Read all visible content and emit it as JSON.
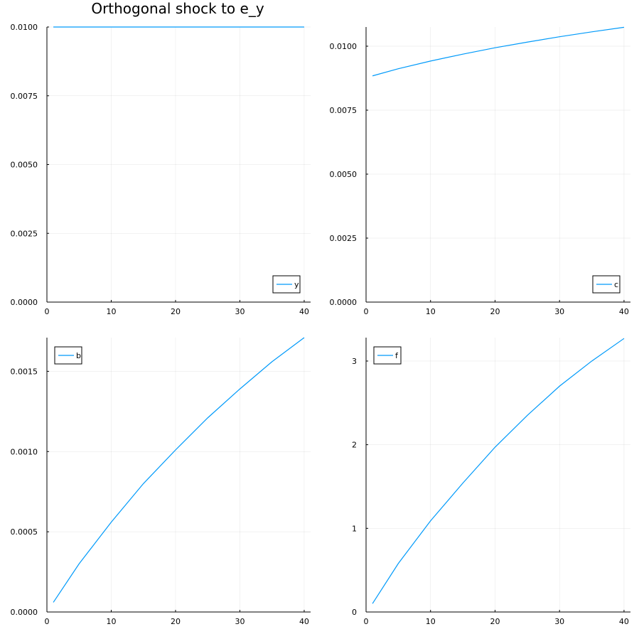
{
  "figure_title": "Orthogonal shock to e_y",
  "colors": {
    "series": "#009AFA"
  },
  "chart_data": [
    {
      "type": "line",
      "title": "Orthogonal shock to e_y",
      "xlabel": "",
      "ylabel": "",
      "xlim": [
        0,
        41
      ],
      "ylim": [
        0,
        0.01
      ],
      "x_ticks": [
        0,
        10,
        20,
        30,
        40
      ],
      "x_tick_labels": [
        "0",
        "10",
        "20",
        "30",
        "40"
      ],
      "y_ticks": [
        0,
        0.0025,
        0.005,
        0.0075,
        0.01
      ],
      "y_tick_labels": [
        "0.0000",
        "0.0025",
        "0.0050",
        "0.0075",
        "0.0100"
      ],
      "grid": true,
      "legend_position": "bottom-right",
      "series": [
        {
          "name": "y",
          "x": [
            1,
            5,
            10,
            15,
            20,
            25,
            30,
            35,
            40
          ],
          "y": [
            0.01,
            0.01,
            0.01,
            0.01,
            0.01,
            0.01,
            0.01,
            0.01,
            0.01
          ]
        }
      ]
    },
    {
      "type": "line",
      "title": "",
      "xlabel": "",
      "ylabel": "",
      "xlim": [
        0,
        41
      ],
      "ylim": [
        0,
        0.01075
      ],
      "x_ticks": [
        0,
        10,
        20,
        30,
        40
      ],
      "x_tick_labels": [
        "0",
        "10",
        "20",
        "30",
        "40"
      ],
      "y_ticks": [
        0,
        0.0025,
        0.005,
        0.0075,
        0.01
      ],
      "y_tick_labels": [
        "0.0000",
        "0.0025",
        "0.0050",
        "0.0075",
        "0.0100"
      ],
      "grid": true,
      "legend_position": "bottom-right",
      "series": [
        {
          "name": "c",
          "x": [
            1,
            5,
            10,
            15,
            20,
            25,
            30,
            35,
            40
          ],
          "y": [
            0.00884,
            0.00912,
            0.00942,
            0.00969,
            0.00994,
            0.01016,
            0.01037,
            0.01056,
            0.01074
          ]
        }
      ]
    },
    {
      "type": "line",
      "title": "",
      "xlabel": "",
      "ylabel": "",
      "xlim": [
        0,
        41
      ],
      "ylim": [
        0,
        0.00171
      ],
      "x_ticks": [
        0,
        10,
        20,
        30,
        40
      ],
      "x_tick_labels": [
        "0",
        "10",
        "20",
        "30",
        "40"
      ],
      "y_ticks": [
        0,
        0.0005,
        0.001,
        0.0015
      ],
      "y_tick_labels": [
        "0.0000",
        "0.0005",
        "0.0010",
        "0.0015"
      ],
      "grid": true,
      "legend_position": "top-left",
      "series": [
        {
          "name": "b",
          "x": [
            1,
            5,
            10,
            15,
            20,
            25,
            30,
            35,
            40
          ],
          "y": [
            6e-05,
            0.0003,
            0.00056,
            0.0008,
            0.00101,
            0.00121,
            0.00139,
            0.00156,
            0.00171
          ]
        }
      ]
    },
    {
      "type": "line",
      "title": "",
      "xlabel": "",
      "ylabel": "",
      "xlim": [
        0,
        41
      ],
      "ylim": [
        0,
        3.28
      ],
      "x_ticks": [
        0,
        10,
        20,
        30,
        40
      ],
      "x_tick_labels": [
        "0",
        "10",
        "20",
        "30",
        "40"
      ],
      "y_ticks": [
        0,
        1,
        2,
        3
      ],
      "y_tick_labels": [
        "0",
        "1",
        "2",
        "3"
      ],
      "grid": true,
      "legend_position": "top-left",
      "series": [
        {
          "name": "f",
          "x": [
            1,
            5,
            10,
            15,
            20,
            25,
            30,
            35,
            40
          ],
          "y": [
            0.1,
            0.58,
            1.09,
            1.54,
            1.97,
            2.35,
            2.7,
            3.0,
            3.27
          ]
        }
      ]
    }
  ]
}
